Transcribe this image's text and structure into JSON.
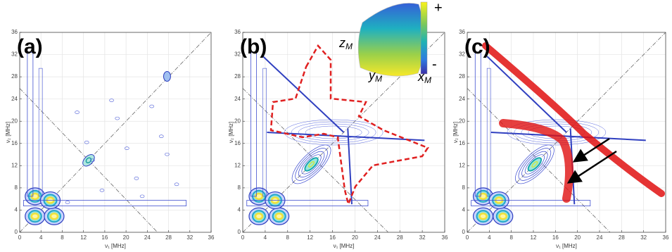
{
  "chart_data": [
    {
      "type": "contour",
      "panel_label": "(a)",
      "x_label": "ν₁ [MHz]",
      "y_label": "ν₂ [MHz]",
      "xlim": [
        0,
        36
      ],
      "ylim": [
        0,
        36
      ],
      "xticks": [
        0,
        4,
        8,
        12,
        16,
        20,
        24,
        28,
        32,
        36
      ],
      "yticks": [
        0,
        4,
        8,
        12,
        16,
        20,
        24,
        28,
        32,
        36
      ],
      "grid": true
    },
    {
      "type": "contour",
      "panel_label": "(b)",
      "x_label": "ν₁ [MHz]",
      "y_label": "ν₂ [MHz]",
      "xlim": [
        0,
        36
      ],
      "ylim": [
        0,
        36
      ],
      "xticks": [
        0,
        4,
        8,
        12,
        16,
        20,
        24,
        28,
        32,
        36
      ],
      "yticks": [
        0,
        4,
        8,
        12,
        16,
        20,
        24,
        28,
        32,
        36
      ],
      "grid": true
    },
    {
      "type": "contour",
      "panel_label": "(c)",
      "x_label": "ν₁ [MHz]",
      "y_label": "ν₂ [MHz]",
      "xlim": [
        0,
        36
      ],
      "ylim": [
        0,
        36
      ],
      "xticks": [
        0,
        4,
        8,
        12,
        16,
        20,
        24,
        28,
        32,
        36
      ],
      "yticks": [
        0,
        4,
        8,
        12,
        16,
        20,
        24,
        28,
        32,
        36
      ],
      "grid": true
    }
  ],
  "inset": {
    "colorbar_max": "+",
    "colorbar_min": "-",
    "z_label": "z",
    "z_sub": "M",
    "y_label": "y",
    "y_sub": "M",
    "x_label": "x",
    "x_sub": "M"
  }
}
